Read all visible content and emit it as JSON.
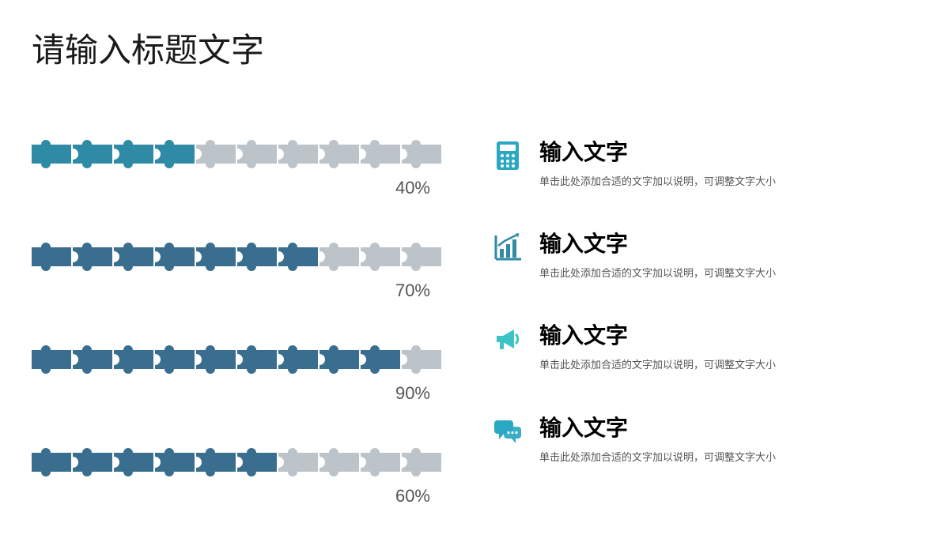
{
  "title": "请输入标题文字",
  "chart": {
    "type": "puzzle-progress-bar",
    "pieces_per_bar": 10,
    "piece_width": 50,
    "piece_height": 48,
    "gap": 2,
    "empty_color": "#bcc3c9",
    "label_color": "#555555",
    "label_fontsize": 22,
    "rows": [
      {
        "value": 40,
        "label": "40%",
        "fill_color": "#2f8aa6",
        "filled": 4
      },
      {
        "value": 70,
        "label": "70%",
        "fill_color": "#3a6e8f",
        "filled": 7
      },
      {
        "value": 90,
        "label": "90%",
        "fill_color": "#3a6e8f",
        "filled": 9
      },
      {
        "value": 60,
        "label": "60%",
        "fill_color": "#3a6e8f",
        "filled": 6
      }
    ]
  },
  "items": [
    {
      "icon": "calculator",
      "icon_color": "#2aa7c2",
      "title": "输入文字",
      "desc": "单击此处添加合适的文字加以说明，可调整文字大小"
    },
    {
      "icon": "bar-chart",
      "icon_color": "#2f8aa6",
      "title": "输入文字",
      "desc": "单击此处添加合适的文字加以说明，可调整文字大小"
    },
    {
      "icon": "megaphone",
      "icon_color": "#3cc4c4",
      "title": "输入文字",
      "desc": "单击此处添加合适的文字加以说明，可调整文字大小"
    },
    {
      "icon": "chat",
      "icon_color": "#2aa7c2",
      "title": "输入文字",
      "desc": "单击此处添加合适的文字加以说明，可调整文字大小"
    }
  ],
  "style": {
    "background": "#ffffff",
    "title_fontsize": 42,
    "title_color": "#1a1a1a",
    "item_title_fontsize": 28,
    "item_title_color": "#000000",
    "item_desc_fontsize": 13,
    "item_desc_color": "#555555"
  }
}
